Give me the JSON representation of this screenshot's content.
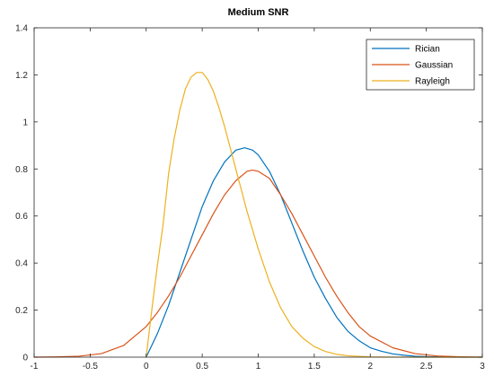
{
  "chart_data": {
    "type": "line",
    "title": "Medium SNR",
    "xlabel": "",
    "ylabel": "",
    "xlim": [
      -1,
      3
    ],
    "ylim": [
      0,
      1.4
    ],
    "xticks": [
      -1,
      -0.5,
      0,
      0.5,
      1,
      1.5,
      2,
      2.5,
      3
    ],
    "xtick_labels": [
      "-1",
      "-0.5",
      "0",
      "0.5",
      "1",
      "1.5",
      "2",
      "2.5",
      "3"
    ],
    "yticks": [
      0,
      0.2,
      0.4,
      0.6,
      0.8,
      1,
      1.2,
      1.4
    ],
    "ytick_labels": [
      "0",
      "0.2",
      "0.4",
      "0.6",
      "0.8",
      "1",
      "1.2",
      "1.4"
    ],
    "grid": false,
    "legend_position": "top-right",
    "series": [
      {
        "name": "Rician",
        "color": "#0072BD",
        "x": [
          0.0,
          0.05,
          0.1,
          0.2,
          0.3,
          0.4,
          0.5,
          0.6,
          0.7,
          0.8,
          0.88,
          0.95,
          1.0,
          1.1,
          1.2,
          1.3,
          1.4,
          1.5,
          1.6,
          1.7,
          1.8,
          1.9,
          2.0,
          2.1,
          2.2,
          2.3,
          2.4,
          2.5,
          2.6,
          2.8,
          3.0
        ],
        "y": [
          0.0,
          0.05,
          0.1,
          0.22,
          0.36,
          0.5,
          0.64,
          0.75,
          0.83,
          0.88,
          0.89,
          0.88,
          0.86,
          0.79,
          0.69,
          0.57,
          0.45,
          0.34,
          0.25,
          0.17,
          0.11,
          0.07,
          0.04,
          0.025,
          0.014,
          0.008,
          0.004,
          0.002,
          0.001,
          0.0,
          0.0
        ]
      },
      {
        "name": "Gaussian",
        "color": "#D95319",
        "x": [
          -1.0,
          -0.8,
          -0.6,
          -0.4,
          -0.2,
          0.0,
          0.1,
          0.2,
          0.3,
          0.4,
          0.5,
          0.6,
          0.7,
          0.8,
          0.9,
          0.95,
          1.0,
          1.1,
          1.2,
          1.3,
          1.4,
          1.5,
          1.6,
          1.7,
          1.8,
          1.9,
          2.0,
          2.2,
          2.4,
          2.6,
          2.8,
          3.0
        ],
        "y": [
          0.0,
          0.001,
          0.004,
          0.015,
          0.05,
          0.13,
          0.19,
          0.26,
          0.34,
          0.43,
          0.52,
          0.61,
          0.69,
          0.75,
          0.79,
          0.795,
          0.79,
          0.76,
          0.69,
          0.61,
          0.52,
          0.43,
          0.34,
          0.26,
          0.19,
          0.13,
          0.09,
          0.04,
          0.015,
          0.005,
          0.0015,
          0.0
        ]
      },
      {
        "name": "Rayleigh",
        "color": "#EDB120",
        "x": [
          0.0,
          0.05,
          0.1,
          0.15,
          0.2,
          0.25,
          0.3,
          0.35,
          0.4,
          0.45,
          0.5,
          0.55,
          0.6,
          0.65,
          0.7,
          0.75,
          0.8,
          0.9,
          1.0,
          1.1,
          1.2,
          1.3,
          1.4,
          1.5,
          1.6,
          1.7,
          1.8,
          2.0,
          2.2,
          2.5,
          3.0
        ],
        "y": [
          0.0,
          0.2,
          0.39,
          0.56,
          0.78,
          0.93,
          1.05,
          1.14,
          1.19,
          1.21,
          1.21,
          1.18,
          1.13,
          1.06,
          0.98,
          0.89,
          0.8,
          0.62,
          0.46,
          0.32,
          0.21,
          0.13,
          0.08,
          0.045,
          0.024,
          0.012,
          0.006,
          0.0012,
          0.0002,
          0.0,
          0.0
        ]
      }
    ]
  }
}
